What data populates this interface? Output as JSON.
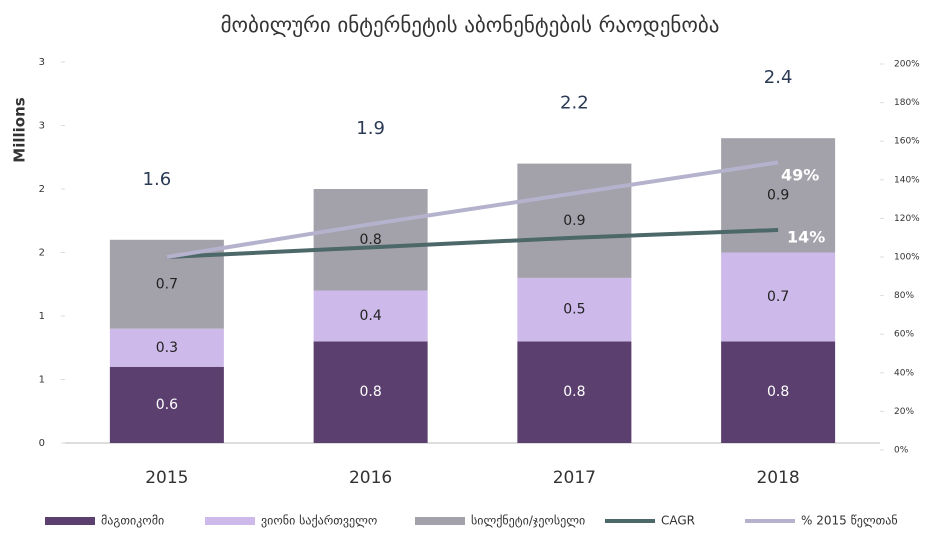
{
  "chart_data": {
    "type": "bar",
    "title": "მობილური ინტერნეტის აბონენტების რაოდენობა",
    "y_label": "Millions",
    "categories": [
      "2015",
      "2016",
      "2017",
      "2018"
    ],
    "series": [
      {
        "name": "მაგთიკომი",
        "color": "#5b3f6f",
        "values": [
          0.6,
          0.8,
          0.8,
          0.8
        ]
      },
      {
        "name": "ვიონი საქართველო",
        "color": "#cdb9ea",
        "values": [
          0.3,
          0.4,
          0.5,
          0.7
        ]
      },
      {
        "name": "სილქნეტი/ჯეოსელი",
        "color": "#a3a2ab",
        "values": [
          0.7,
          0.8,
          0.9,
          0.9
        ]
      },
      {
        "name": "CAGR",
        "color": "#4d6868",
        "type": "line",
        "axis": "y2",
        "values": [
          100,
          105,
          110,
          114
        ]
      },
      {
        "name": "% 2015 წელთან",
        "color": "#b4b2cc",
        "type": "line",
        "axis": "y2",
        "values": [
          100,
          117,
          133,
          149
        ]
      }
    ],
    "totals": [
      1.6,
      1.9,
      2.2,
      2.4
    ],
    "annotations": [
      "49%",
      "14%"
    ],
    "ylim": [
      0,
      3
    ],
    "yticks": [
      0,
      {
        "value": 0.5,
        "label": "1"
      },
      1,
      {
        "value": 1.5,
        "label": "2"
      },
      2,
      {
        "value": 2.5,
        "label": "3"
      },
      3
    ],
    "y2lim": [
      0,
      200
    ],
    "y2ticks": [
      {
        "value": 0,
        "label": "0%"
      },
      {
        "value": 20,
        "label": "20%"
      },
      {
        "value": 40,
        "label": "40%"
      },
      {
        "value": 60,
        "label": "60%"
      },
      {
        "value": 80,
        "label": "80%"
      },
      {
        "value": 100,
        "label": "100%"
      },
      {
        "value": 120,
        "label": "120%"
      },
      {
        "value": 140,
        "label": "140%"
      },
      {
        "value": 160,
        "label": "160%"
      },
      {
        "value": 180,
        "label": "180%"
      },
      {
        "value": 200,
        "label": "200%"
      }
    ],
    "legend": "bottom"
  }
}
